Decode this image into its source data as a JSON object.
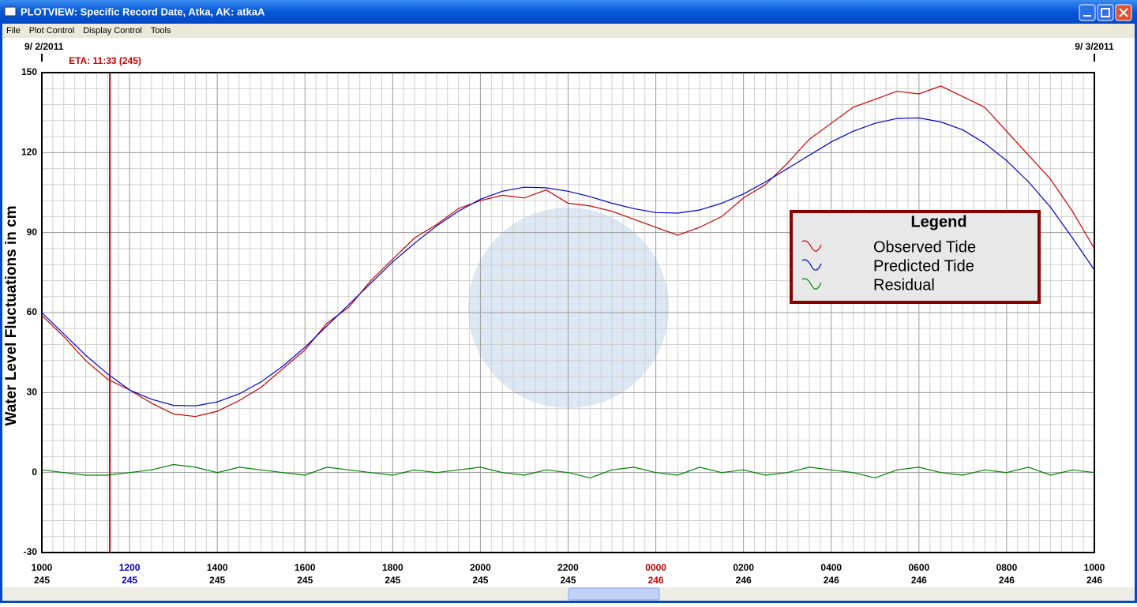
{
  "window": {
    "title": "PLOTVIEW: Specific Record Date, Atka, AK: atkaA",
    "menu": [
      "File",
      "Plot Control",
      "Display Control",
      "Tools"
    ]
  },
  "chart_data": {
    "type": "line",
    "ylabel": "Water Level Fluctuations in cm",
    "x": [
      10,
      10.5,
      11,
      11.5,
      12,
      12.5,
      13,
      13.5,
      14,
      14.5,
      15,
      15.5,
      16,
      16.5,
      17,
      17.5,
      18,
      18.5,
      19,
      19.5,
      20,
      20.5,
      21,
      21.5,
      22,
      22.5,
      23,
      23.5,
      24,
      24.5,
      25,
      25.5,
      26,
      26.5,
      27,
      27.5,
      28,
      28.5,
      29,
      29.5,
      30,
      30.5,
      31,
      31.5,
      32,
      32.5,
      33,
      33.5,
      34
    ],
    "series": [
      {
        "name": "Observed Tide",
        "color": "#cc0000",
        "values": [
          59,
          51,
          42,
          35,
          31,
          26,
          22,
          21,
          23,
          27,
          32,
          39,
          46,
          56,
          62,
          72,
          80,
          88,
          93,
          99,
          102,
          104,
          103,
          106,
          101,
          100,
          98,
          95,
          92,
          89,
          92,
          96,
          103,
          108,
          116,
          125,
          131,
          137,
          140,
          143,
          142,
          145,
          141,
          137,
          128,
          119,
          110,
          98,
          84
        ]
      },
      {
        "name": "Predicted Tide",
        "color": "#0000cc",
        "values": [
          60,
          52,
          44,
          37,
          31,
          27.5,
          25.2,
          25,
          26.5,
          29.5,
          34,
          40,
          47,
          55,
          63,
          71,
          79,
          86,
          92.5,
          98,
          102.5,
          105.5,
          107,
          106.8,
          105.5,
          103.5,
          101,
          99,
          97.5,
          97.3,
          98.5,
          101,
          104.5,
          109,
          114,
          119,
          124,
          128,
          131,
          132.8,
          133,
          131.5,
          128.5,
          123.5,
          117,
          109,
          99.5,
          88,
          76
        ]
      },
      {
        "name": "Residual",
        "color": "#008000",
        "values": [
          1,
          0,
          -1,
          -1,
          0,
          1,
          3,
          2,
          0,
          2,
          1,
          0,
          -1,
          2,
          1,
          0,
          -1,
          1,
          0,
          1,
          2,
          0,
          -1,
          1,
          0,
          -2,
          1,
          2,
          0,
          -1,
          2,
          0,
          1,
          -1,
          0,
          2,
          1,
          0,
          -2,
          1,
          2,
          0,
          -1,
          1,
          0,
          2,
          -1,
          1,
          0
        ]
      }
    ],
    "xlim": [
      10,
      34
    ],
    "ylim": [
      -30,
      150
    ],
    "yticks": [
      -30,
      0,
      30,
      60,
      90,
      120,
      150
    ],
    "xticks": [
      {
        "value": 10,
        "label": "1000"
      },
      {
        "value": 12,
        "label": "1200"
      },
      {
        "value": 14,
        "label": "1400"
      },
      {
        "value": 16,
        "label": "1600"
      },
      {
        "value": 18,
        "label": "1800"
      },
      {
        "value": 20,
        "label": "2000"
      },
      {
        "value": 22,
        "label": "2200"
      },
      {
        "value": 24,
        "label": "0000"
      },
      {
        "value": 26,
        "label": "0200"
      },
      {
        "value": 28,
        "label": "0400"
      },
      {
        "value": 30,
        "label": "0600"
      },
      {
        "value": 32,
        "label": "0800"
      },
      {
        "value": 34,
        "label": "1000"
      }
    ],
    "xtick_days": [
      "245",
      "245",
      "245",
      "245",
      "245",
      "245",
      "245",
      "246",
      "246",
      "246",
      "246",
      "246",
      "246"
    ],
    "xtick_colors": [
      "#000000",
      "#0000c0",
      "#000000",
      "#000000",
      "#000000",
      "#000000",
      "#000000",
      "#c00000",
      "#000000",
      "#000000",
      "#000000",
      "#000000",
      "#000000"
    ],
    "grid": true,
    "x_minor_divisions": 8,
    "y_minor_divisions": 5,
    "legend": {
      "title": "Legend",
      "position": "right"
    },
    "eta": {
      "label": "ETA: 11:33 (245)",
      "x": 11.55,
      "color": "#cc0000"
    },
    "date_labels": [
      {
        "x": 10,
        "label": "9/ 2/2011"
      },
      {
        "x": 34,
        "label": "9/ 3/2011"
      }
    ]
  }
}
